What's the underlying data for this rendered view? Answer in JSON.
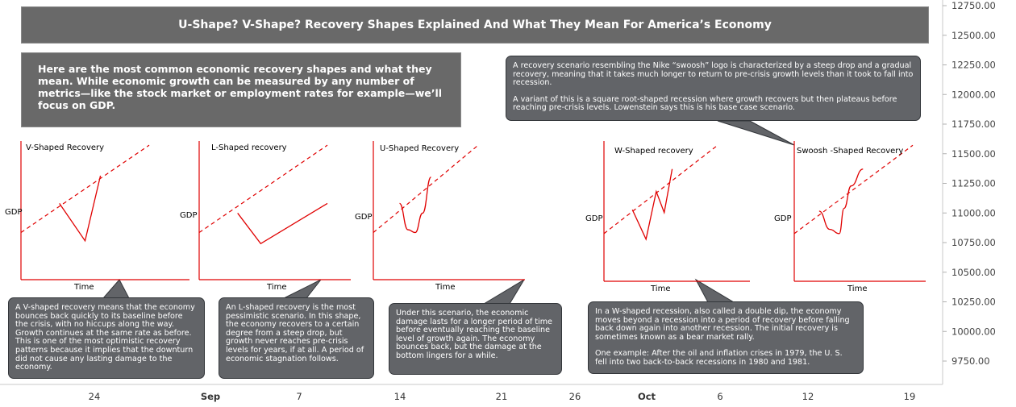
{
  "header": {
    "title": "U-Shape? V-Shape? Recovery Shapes Explained And What They Mean For America’s Economy"
  },
  "intro": {
    "text": "Here are the most common economic recovery shapes and what they mean. While economic growth can be measured by any number of metrics—like the stock market or employment rates for example—we’ll focus on GDP."
  },
  "notes": {
    "v": "A V-shaped recovery means that the economy bounces back quickly to its baseline before the crisis, with no hiccups along the way. Growth continues at the same rate as before. This is one of the most optimistic recovery patterns because it implies that the downturn did not cause any lasting damage to the economy.",
    "l": "An L-shaped recovery is the most pessimistic scenario. In this shape, the economy recovers to a certain degree from a steep drop, but growth never reaches pre-crisis levels for years, if at all. A period of economic stagnation follows.",
    "u": "Under this scenario, the economic damage lasts for a longer period of time before eventually reaching the baseline level of growth again. The economy bounces back, but the damage at the bottom lingers for a while.",
    "w1": "In a W-shaped recession, also called a double dip, the economy moves beyond a recession into a period of recovery before falling back down again into another recession. The initial recovery is sometimes known as a bear market rally.",
    "w2": "One example: After the oil and inflation crises in 1979, the U. S. fell into two back-to-back recessions in 1980 and 1981.",
    "swoosh1": "A recovery scenario resembling the Nike “swoosh” logo is characterized by a steep drop and a gradual recovery, meaning that it takes much longer to return to pre-crisis growth levels than it took to fall into recession.",
    "swoosh2": "A variant of this is a square root-shaped recession where growth recovers but then plateaus before reaching pre-crisis levels. Lowenstein says this is his base case scenario."
  },
  "axes": {
    "price_ticks": [
      "12750.00",
      "12500.00",
      "12250.00",
      "12000.00",
      "11750.00",
      "11500.00",
      "11250.00",
      "11000.00",
      "10750.00",
      "10500.00",
      "10250.00",
      "10000.00",
      "9750.00"
    ],
    "date_ticks": [
      "24",
      "Sep",
      "7",
      "14",
      "21",
      "26",
      "Oct",
      "6",
      "12",
      "19"
    ]
  },
  "colors": {
    "curve": "#e00000",
    "box": "#696969",
    "note": "#626468"
  },
  "chart_data": [
    {
      "type": "line",
      "title": "V-Shaped Recovery",
      "xlabel": "Time",
      "ylabel": "GDP",
      "shape": [
        [
          0.3,
          0.55
        ],
        [
          0.5,
          0.28
        ],
        [
          0.62,
          0.75
        ]
      ],
      "trend": [
        [
          0,
          0.34
        ],
        [
          1,
          0.97
        ]
      ]
    },
    {
      "type": "line",
      "title": "L-Shaped recovery",
      "xlabel": "Time",
      "ylabel": "GDP",
      "shape": [
        [
          0.3,
          0.48
        ],
        [
          0.48,
          0.26
        ],
        [
          1.0,
          0.55
        ]
      ],
      "trend": [
        [
          0,
          0.34
        ],
        [
          1,
          0.97
        ]
      ]
    },
    {
      "type": "line",
      "title": "U-Shaped Recovery",
      "xlabel": "Time",
      "ylabel": "GDP",
      "shape": [
        [
          0.25,
          0.55
        ],
        [
          0.33,
          0.36
        ],
        [
          0.4,
          0.34
        ],
        [
          0.47,
          0.48
        ],
        [
          0.55,
          0.74
        ]
      ],
      "trend": [
        [
          0,
          0.34
        ],
        [
          1,
          0.97
        ]
      ]
    },
    {
      "type": "line",
      "title": "W-Shaped recovery",
      "xlabel": "Time",
      "ylabel": "GDP",
      "shape": [
        [
          0.25,
          0.51
        ],
        [
          0.37,
          0.3
        ],
        [
          0.46,
          0.64
        ],
        [
          0.53,
          0.49
        ],
        [
          0.6,
          0.8
        ]
      ],
      "trend": [
        [
          0,
          0.34
        ],
        [
          1,
          0.97
        ]
      ]
    },
    {
      "type": "line",
      "title": "Swoosh -Shaped Recovery",
      "xlabel": "Time",
      "ylabel": "GDP",
      "shape": [
        [
          0.21,
          0.5
        ],
        [
          0.3,
          0.37
        ],
        [
          0.38,
          0.34
        ],
        [
          0.42,
          0.52
        ],
        [
          0.48,
          0.68
        ],
        [
          0.58,
          0.8
        ]
      ],
      "trend": [
        [
          0,
          0.34
        ],
        [
          1,
          0.97
        ]
      ]
    }
  ]
}
